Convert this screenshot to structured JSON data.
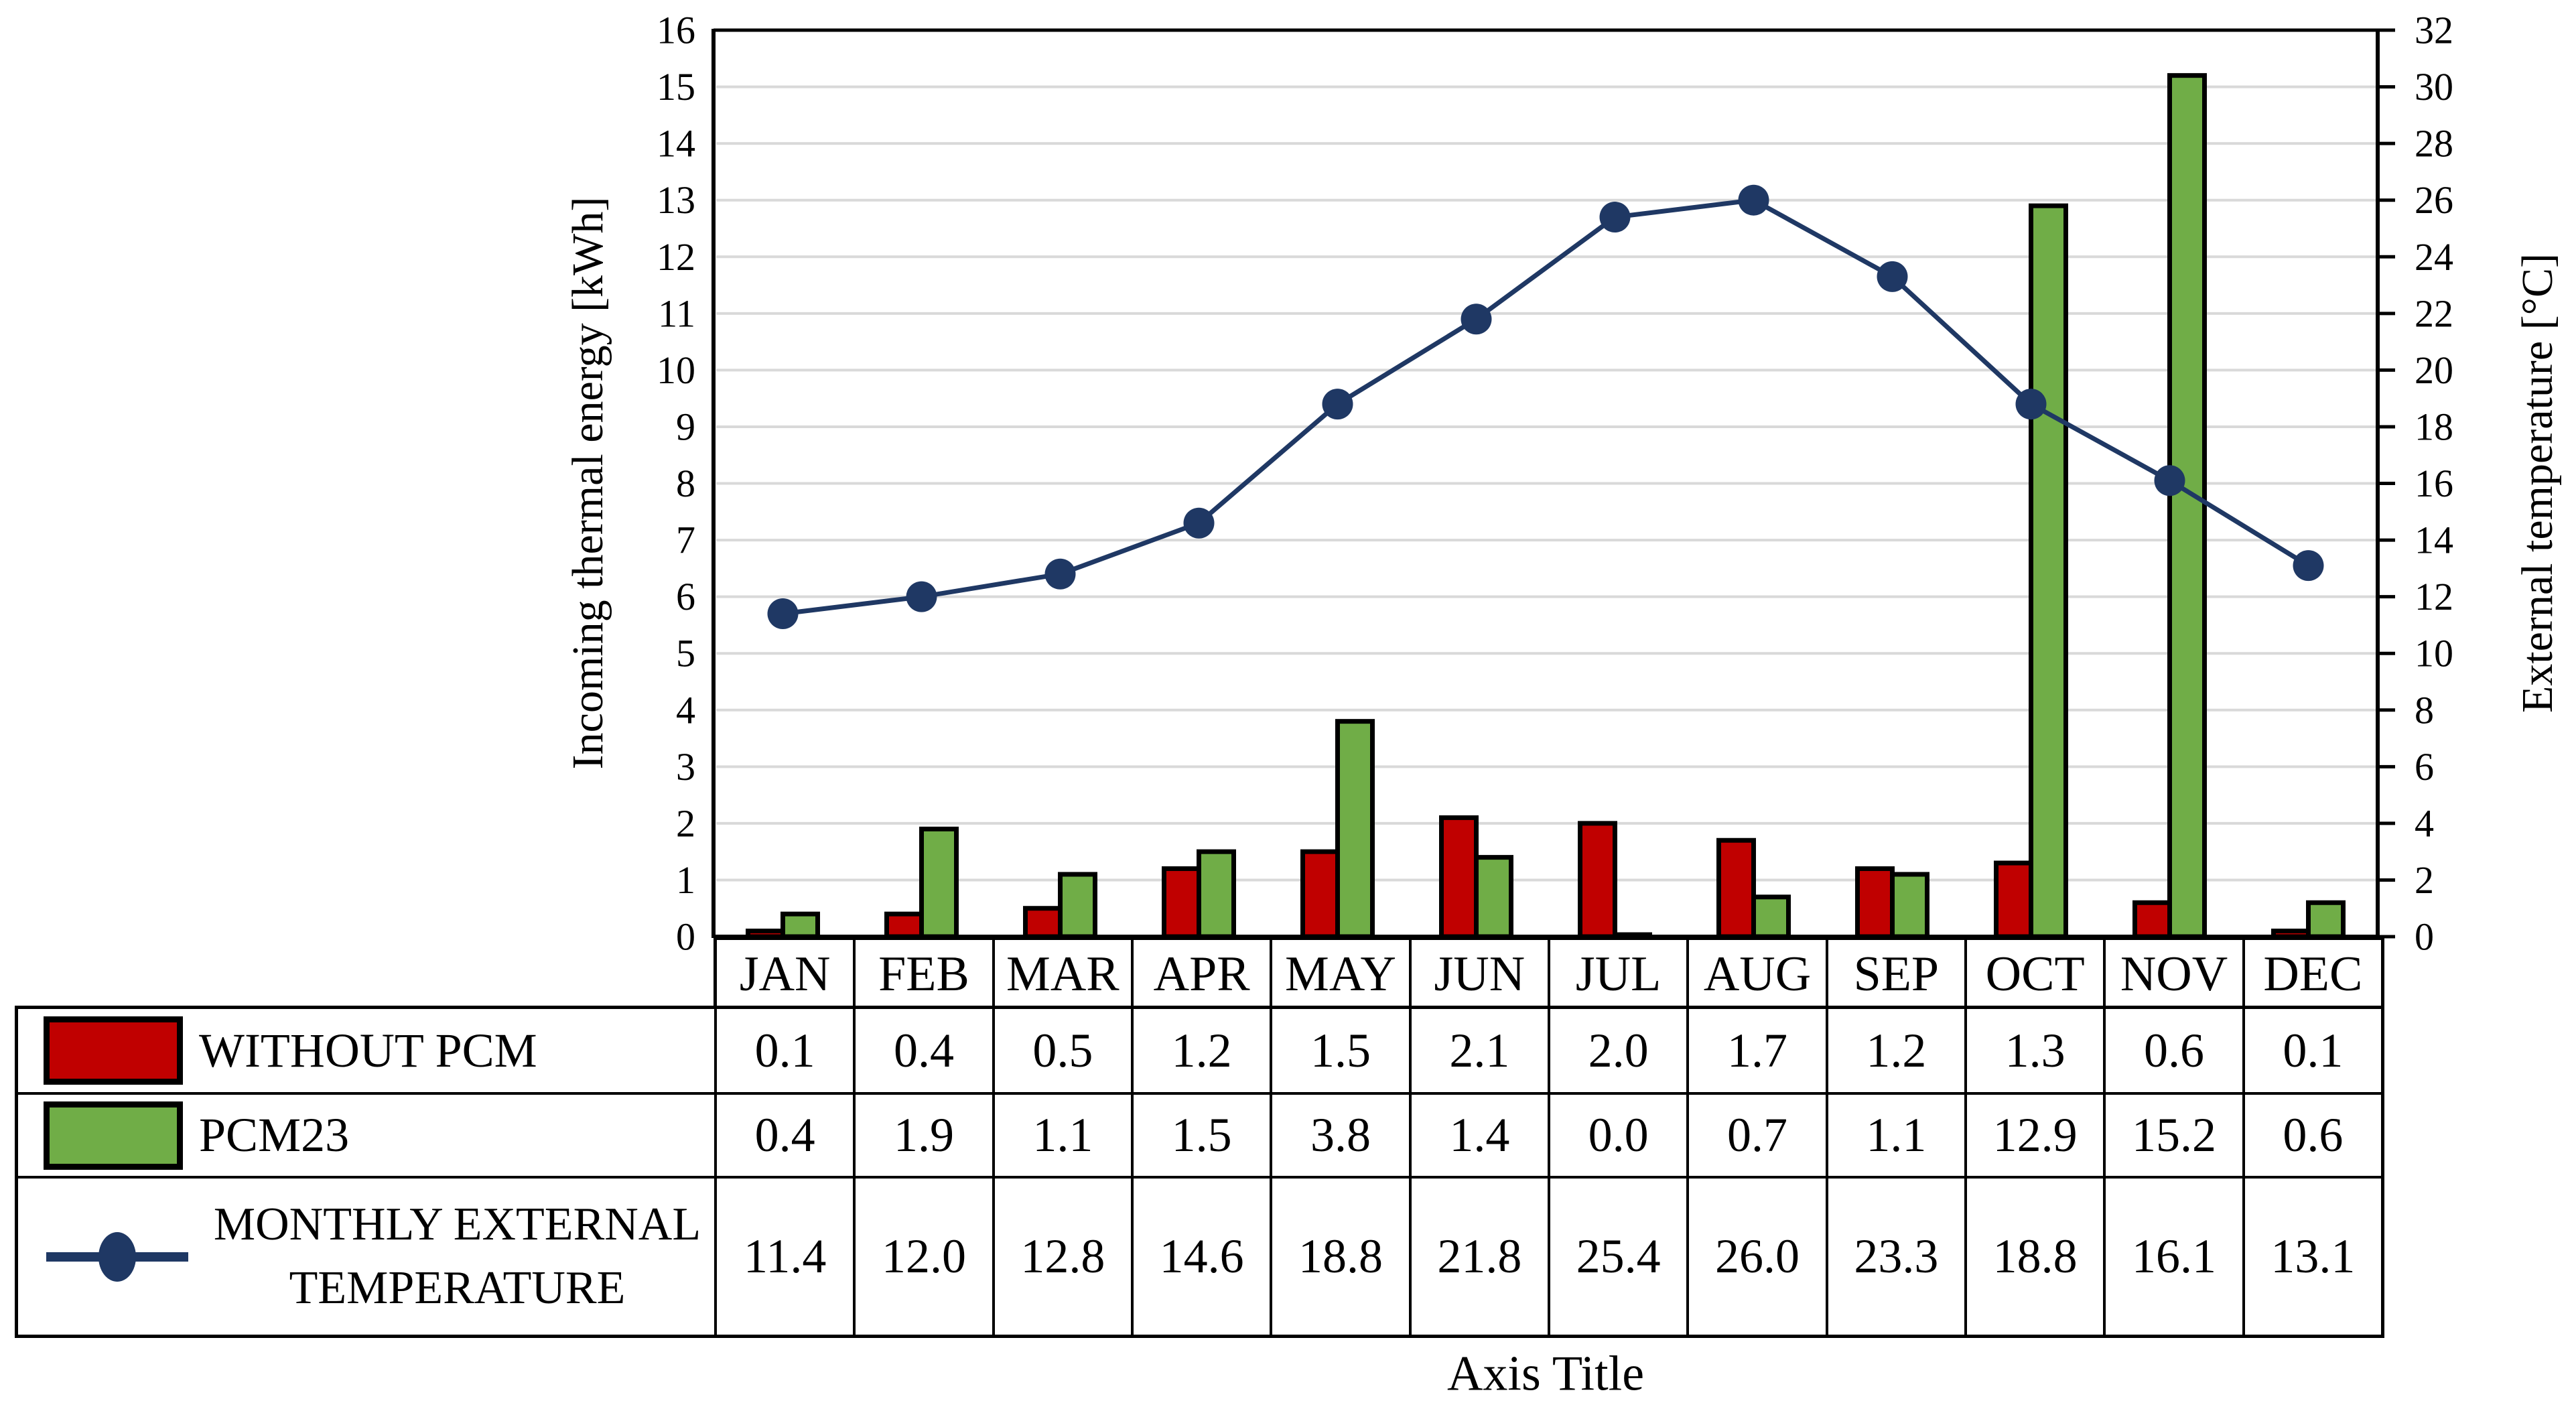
{
  "chart_data": {
    "type": "combo-bar-line",
    "xlabel": "Axis Title",
    "ylabel_left": "Incoming thermal energy [kWh]",
    "ylabel_right": "External temperature [°C]",
    "categories": [
      "JAN",
      "FEB",
      "MAR",
      "APR",
      "MAY",
      "JUN",
      "JUL",
      "AUG",
      "SEP",
      "OCT",
      "NOV",
      "DEC"
    ],
    "series": [
      {
        "name": "WITHOUT PCM",
        "name_lines": [
          "WITHOUT PCM"
        ],
        "type": "bar",
        "axis": "left",
        "color": "#C00000",
        "border_color": "#000000",
        "values": [
          0.1,
          0.4,
          0.5,
          1.2,
          1.5,
          2.1,
          2.0,
          1.7,
          1.2,
          1.3,
          0.6,
          0.1
        ]
      },
      {
        "name": "PCM23",
        "name_lines": [
          "PCM23"
        ],
        "type": "bar",
        "axis": "left",
        "color": "#70AD47",
        "border_color": "#000000",
        "values": [
          0.4,
          1.9,
          1.1,
          1.5,
          3.8,
          1.4,
          0.0,
          0.7,
          1.1,
          12.9,
          15.2,
          0.6
        ]
      },
      {
        "name": "MONTHLY EXTERNAL TEMPERATURE",
        "name_lines": [
          "MONTHLY EXTERNAL",
          "TEMPERATURE"
        ],
        "type": "line",
        "axis": "right",
        "marker": "circle",
        "color": "#1F3864",
        "values": [
          11.4,
          12.0,
          12.8,
          14.6,
          18.8,
          21.8,
          25.4,
          26.0,
          23.3,
          18.8,
          16.1,
          13.1
        ]
      }
    ],
    "ylim_left": [
      0,
      16
    ],
    "ytick_step_left": 1,
    "ylim_right": [
      0,
      32
    ],
    "ytick_step_right": 2,
    "gridlines": {
      "show": true,
      "color": "#D9D9D9"
    },
    "axis_color": "#000000",
    "background": "#FFFFFF",
    "legend_position": "data-table-left",
    "data_table": {
      "shown": true,
      "value_decimals": 1
    }
  }
}
